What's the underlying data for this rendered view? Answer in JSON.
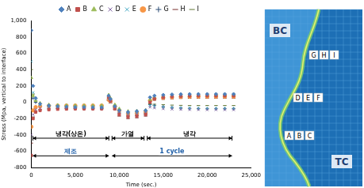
{
  "chart_data": {
    "type": "scatter",
    "x_label": "Time (sec.)",
    "y_label": "Stress (Mpa, vertical to interface)",
    "xlim": [
      0,
      25000
    ],
    "xticks": [
      0,
      5000,
      10000,
      15000,
      20000,
      25000
    ],
    "ylim": [
      -800,
      1000
    ],
    "yticks": [
      -800,
      -600,
      -400,
      -200,
      0,
      200,
      400,
      600,
      800,
      1000
    ],
    "grid": false,
    "legend": "top",
    "x": [
      0,
      200,
      500,
      1000,
      2000,
      3000,
      4000,
      5000,
      6000,
      7000,
      8000,
      8800,
      9000,
      9500,
      10000,
      11000,
      12000,
      13000,
      13500,
      14000,
      15000,
      16000,
      17000,
      18000,
      19000,
      20000,
      21000,
      22000,
      23000
    ],
    "series": [
      {
        "name": "A",
        "color": "#4f81bd",
        "marker": "diamond",
        "values": [
          880,
          200,
          50,
          -20,
          -40,
          -50,
          -55,
          -60,
          -60,
          -62,
          -63,
          80,
          40,
          -50,
          -100,
          -120,
          -110,
          -100,
          60,
          80,
          90,
          95,
          98,
          100,
          100,
          100,
          100,
          100,
          100
        ]
      },
      {
        "name": "B",
        "color": "#c0504d",
        "marker": "square",
        "values": [
          -650,
          -200,
          -120,
          -100,
          -90,
          -85,
          -82,
          -80,
          -80,
          -80,
          -80,
          60,
          20,
          -80,
          -150,
          -180,
          -170,
          -150,
          0,
          40,
          60,
          70,
          75,
          78,
          80,
          80,
          80,
          80,
          80
        ]
      },
      {
        "name": "C",
        "color": "#9bbb59",
        "marker": "triangle",
        "values": [
          300,
          80,
          20,
          -10,
          -30,
          -35,
          -38,
          -40,
          -40,
          -40,
          -40,
          90,
          50,
          -30,
          -80,
          -110,
          -105,
          -95,
          30,
          60,
          75,
          85,
          90,
          92,
          94,
          95,
          95,
          95,
          95
        ]
      },
      {
        "name": "D",
        "color": "#8064a2",
        "marker": "x",
        "values": [
          -400,
          -150,
          -90,
          -70,
          -60,
          -55,
          -52,
          -50,
          -50,
          -50,
          -50,
          40,
          0,
          -60,
          -120,
          -150,
          -140,
          -130,
          -60,
          -70,
          -80,
          -85,
          -88,
          -90,
          -90,
          -92,
          -92,
          -92,
          -92
        ]
      },
      {
        "name": "E",
        "color": "#4bacc6",
        "marker": "x",
        "values": [
          500,
          120,
          30,
          -30,
          -50,
          -60,
          -62,
          -65,
          -65,
          -66,
          -66,
          70,
          30,
          -40,
          -90,
          -130,
          -125,
          -115,
          -40,
          -50,
          -60,
          -66,
          -70,
          -72,
          -74,
          -75,
          -75,
          -75,
          -75
        ]
      },
      {
        "name": "F",
        "color": "#f79646",
        "marker": "circle",
        "values": [
          -300,
          -100,
          -60,
          -50,
          -45,
          -42,
          -40,
          -40,
          -40,
          -40,
          -40,
          30,
          10,
          -50,
          -100,
          -140,
          -135,
          -120,
          20,
          45,
          55,
          62,
          66,
          68,
          70,
          70,
          70,
          70,
          70
        ]
      },
      {
        "name": "G",
        "color": "#2c4d75",
        "marker": "plus",
        "values": [
          200,
          50,
          0,
          -40,
          -60,
          -70,
          -75,
          -78,
          -80,
          -80,
          -80,
          50,
          10,
          -70,
          -130,
          -170,
          -165,
          -150,
          -30,
          -40,
          -55,
          -65,
          -72,
          -76,
          -78,
          -80,
          -80,
          -80,
          -80
        ]
      },
      {
        "name": "H",
        "color": "#772c2a",
        "marker": "dash",
        "values": [
          -500,
          -180,
          -110,
          -90,
          -80,
          -76,
          -74,
          -72,
          -72,
          -72,
          -72,
          20,
          -10,
          -90,
          -170,
          -200,
          -190,
          -170,
          10,
          25,
          35,
          42,
          46,
          48,
          50,
          50,
          50,
          50,
          50
        ]
      },
      {
        "name": "I",
        "color": "#5f7530",
        "marker": "dash",
        "values": [
          400,
          100,
          20,
          -20,
          -35,
          -40,
          -43,
          -45,
          -45,
          -45,
          -45,
          60,
          20,
          -60,
          -110,
          -160,
          -150,
          -135,
          -20,
          -25,
          -30,
          -35,
          -38,
          -40,
          -40,
          -40,
          -40,
          -40,
          -40
        ]
      }
    ],
    "annotations": [
      {
        "text": "냉각(상온)",
        "x": [
          0,
          9000
        ],
        "row": 1
      },
      {
        "text": "가열",
        "x": [
          9000,
          13000
        ],
        "row": 1
      },
      {
        "text": "냉각",
        "x": [
          13000,
          23000
        ],
        "row": 1
      },
      {
        "text": "제조",
        "x": [
          0,
          9000
        ],
        "row": 2
      },
      {
        "text": "1 cycle",
        "x": [
          9000,
          23000
        ],
        "row": 2
      }
    ]
  },
  "diagram": {
    "regions": [
      "BC",
      "TC"
    ],
    "points": [
      [
        "G",
        "H",
        "I"
      ],
      [
        "D",
        "E",
        "F"
      ],
      [
        "A",
        "B",
        "C"
      ]
    ]
  }
}
